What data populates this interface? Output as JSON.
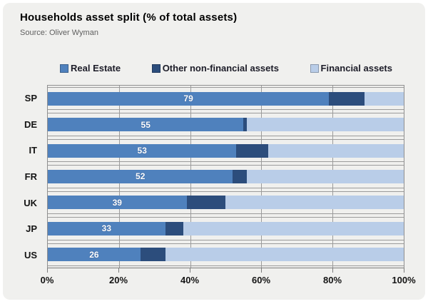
{
  "title": "Households asset split (% of total assets)",
  "source": "Source: Oliver Wyman",
  "colors": {
    "panel_bg": "#f0f0ee",
    "gridline": "#9b9b9b",
    "real_estate": "#4f81bd",
    "other_non_financial": "#2c4d7c",
    "financial": "#b9cde8",
    "value_label": "#ffffff"
  },
  "chart_data": {
    "type": "bar",
    "orientation": "horizontal",
    "stacked": true,
    "title": "Households asset split (% of total assets)",
    "categories": [
      "SP",
      "DE",
      "IT",
      "FR",
      "UK",
      "JP",
      "US"
    ],
    "series": [
      {
        "name": "Real Estate",
        "color": "#4f81bd",
        "values": [
          79,
          55,
          53,
          52,
          39,
          33,
          26
        ]
      },
      {
        "name": "Other non-financial assets",
        "color": "#2c4d7c",
        "values": [
          10,
          1,
          9,
          4,
          11,
          5,
          7
        ]
      },
      {
        "name": "Financial assets",
        "color": "#b9cde8",
        "values": [
          11,
          44,
          38,
          44,
          50,
          62,
          67
        ]
      }
    ],
    "value_labels": [
      "79",
      "55",
      "53",
      "52",
      "39",
      "33",
      "26"
    ],
    "x_ticks": [
      "0%",
      "20%",
      "40%",
      "60%",
      "80%",
      "100%"
    ],
    "xlim": [
      0,
      100
    ],
    "grid": "on",
    "legend_position": "top"
  }
}
